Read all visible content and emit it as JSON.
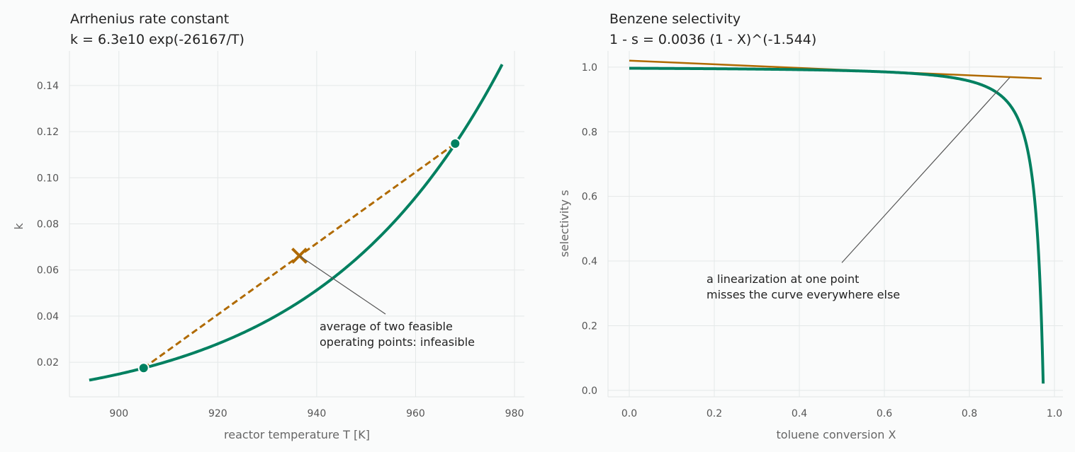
{
  "chart_data": [
    {
      "type": "line",
      "title": "Arrhenius rate constant",
      "subtitle": "k = 6.3e10 exp(-26167/T)",
      "xlabel": "reactor temperature T  [K]",
      "ylabel": "k",
      "xlim": [
        890,
        982
      ],
      "ylim": [
        0.005,
        0.155
      ],
      "xticks": [
        900,
        920,
        940,
        960,
        980
      ],
      "yticks": [
        0.02,
        0.04,
        0.06,
        0.08,
        0.1,
        0.12,
        0.14
      ],
      "ytick_labels": [
        "0.02",
        "0.04",
        "0.06",
        "0.08",
        "0.10",
        "0.12",
        "0.14"
      ],
      "grid": true,
      "curve": {
        "A": 63000000000,
        "Ea_over_R": 26167,
        "T_min": 894,
        "T_max": 977.5,
        "color": "#008060"
      },
      "points": [
        {
          "T": 905,
          "k": 0.0175
        },
        {
          "T": 968,
          "k": 0.1148
        }
      ],
      "average_point": {
        "T": 936.5,
        "k": 0.0662,
        "color": "#b06a00"
      },
      "chord_color": "#b06a00",
      "annotation": {
        "lines": [
          "average of two feasible",
          "operating points: infeasible"
        ],
        "text_x": 940,
        "text_y": 0.034
      }
    },
    {
      "type": "line",
      "title": "Benzene selectivity",
      "subtitle": "1 - s = 0.0036 (1 - X)^(-1.544)",
      "xlabel": "toluene conversion X",
      "ylabel": "selectivity s",
      "xlim": [
        -0.05,
        1.02
      ],
      "ylim": [
        -0.02,
        1.05
      ],
      "xticks": [
        0.0,
        0.2,
        0.4,
        0.6,
        0.8,
        1.0
      ],
      "xtick_labels": [
        "0.0",
        "0.2",
        "0.4",
        "0.6",
        "0.8",
        "1.0"
      ],
      "yticks": [
        0.0,
        0.2,
        0.4,
        0.6,
        0.8,
        1.0
      ],
      "ytick_labels": [
        "0.0",
        "0.2",
        "0.4",
        "0.6",
        "0.8",
        "1.0"
      ],
      "grid": true,
      "curve": {
        "c": 0.0036,
        "exponent": -1.544,
        "X_min": 0.0,
        "X_max": 0.9735,
        "color": "#008060"
      },
      "linearization": {
        "x": [
          0.0,
          0.97
        ],
        "y": [
          1.02,
          0.965
        ],
        "color": "#b06a00"
      },
      "annotation": {
        "lines": [
          "a linearization at one point",
          "misses the curve everywhere else"
        ],
        "text_x": 0.18,
        "text_y": 0.355,
        "arrow_from": [
          0.5,
          0.395
        ],
        "arrow_to": [
          0.895,
          0.968
        ]
      }
    }
  ]
}
